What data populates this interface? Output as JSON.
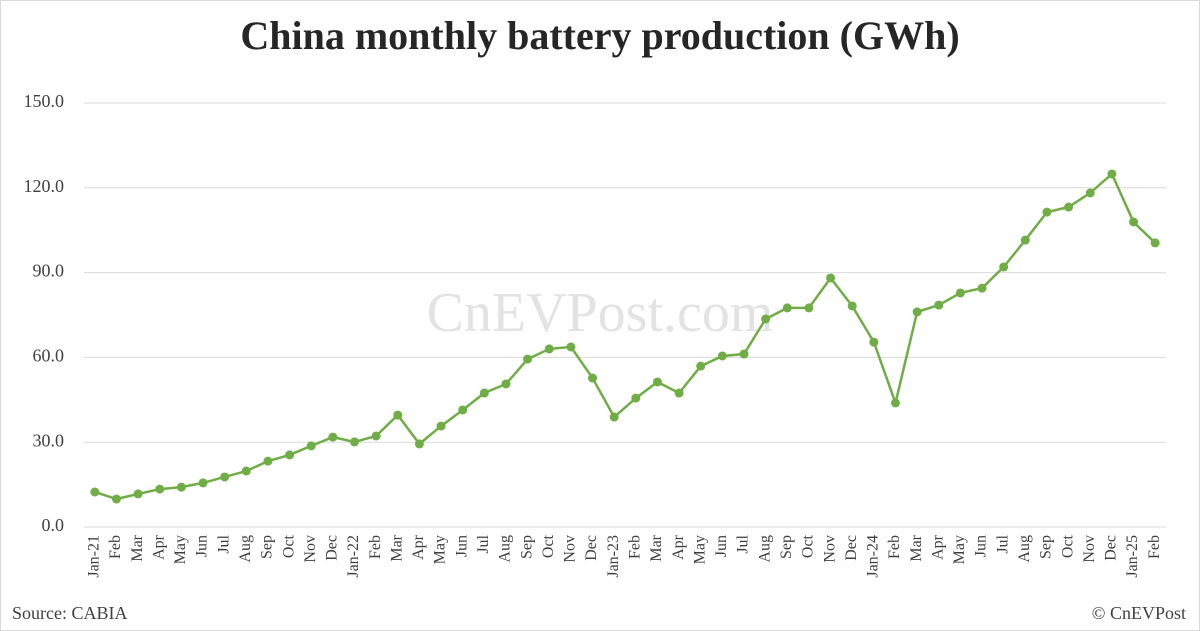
{
  "chart_data": {
    "type": "line",
    "title": "China monthly battery production (GWh)",
    "watermark": "CnEVPost.com",
    "source": "Source: CABIA",
    "credit": "© CnEVPost",
    "categories": [
      "Jan-21",
      "Feb",
      "Mar",
      "Apr",
      "May",
      "Jun",
      "Jul",
      "Aug",
      "Sep",
      "Oct",
      "Nov",
      "Dec",
      "Jan-22",
      "Feb",
      "Mar",
      "Apr",
      "May",
      "Jun",
      "Jul",
      "Aug",
      "Sep",
      "Oct",
      "Nov",
      "Dec",
      "Jan-23",
      "Feb",
      "Mar",
      "Apr",
      "May",
      "Jun",
      "Jul",
      "Aug",
      "Sep",
      "Oct",
      "Nov",
      "Dec",
      "Jan-24",
      "Feb",
      "Mar",
      "Apr",
      "May",
      "Jun",
      "Jul",
      "Aug",
      "Sep",
      "Oct",
      "Nov",
      "Dec",
      "Jan-25",
      "Feb"
    ],
    "series": [
      {
        "color": "#70ad47",
        "values": [
          12.4,
          9.9,
          11.7,
          13.4,
          14.1,
          15.6,
          17.7,
          19.8,
          23.3,
          25.5,
          28.7,
          31.8,
          30.1,
          32.2,
          39.6,
          29.4,
          35.7,
          41.4,
          47.4,
          50.6,
          59.4,
          63.0,
          63.7,
          52.7,
          38.9,
          45.6,
          51.3,
          47.4,
          56.9,
          60.5,
          61.2,
          73.6,
          77.5,
          77.5,
          88.1,
          78.2,
          65.4,
          43.9,
          76.1,
          78.5,
          82.8,
          84.5,
          92.0,
          101.5,
          111.4,
          113.2,
          118.2,
          124.9,
          107.9,
          100.5
        ]
      }
    ],
    "ylim": [
      0,
      150
    ],
    "yticks": [
      {
        "value": 0,
        "label": "0.0"
      },
      {
        "value": 30,
        "label": "30.0"
      },
      {
        "value": 60,
        "label": "60.0"
      },
      {
        "value": 90,
        "label": "90.0"
      },
      {
        "value": 120,
        "label": "120.0"
      },
      {
        "value": 150,
        "label": "150.0"
      }
    ],
    "grid": true
  }
}
